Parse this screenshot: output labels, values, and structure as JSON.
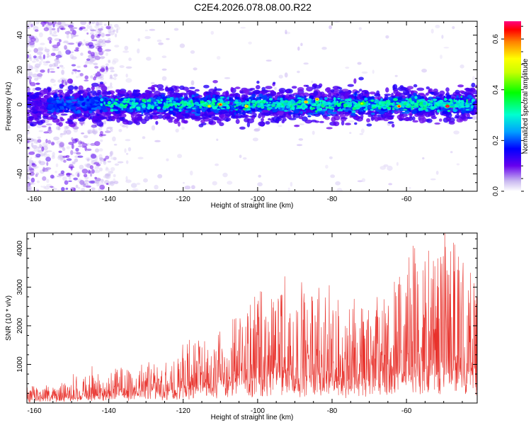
{
  "figure": {
    "title": "C2E4.2026.078.08.00.R22"
  },
  "chart_data": [
    {
      "type": "heatmap",
      "xlabel": "Height of straight line (km)",
      "ylabel": "Frequency (Hz)",
      "xlim": [
        -162,
        -41
      ],
      "ylim": [
        -50,
        48
      ],
      "x_ticks": [
        -160,
        -140,
        -120,
        -100,
        -80,
        -60
      ],
      "y_ticks": [
        -40,
        -20,
        0,
        20,
        40
      ],
      "colorbar": {
        "label": "Normalized spectral amplitude",
        "range": [
          0,
          0.67
        ],
        "ticks": [
          0.0,
          0.2,
          0.4,
          0.6
        ],
        "tick_labels": [
          "0.0",
          "0.2",
          "0.4",
          "0.6"
        ],
        "colormap": "rainbow-on-white"
      },
      "description_band": {
        "center_frequency_hz": 0,
        "band_halfwidth_hz": 7,
        "note": "Dense signal band near 0 Hz across full range; scattered energy at all frequencies for x < -135 km"
      }
    },
    {
      "type": "line",
      "xlabel": "Height of straight line (km)",
      "ylabel": "SNR (10 * v/v)",
      "xlim": [
        -162,
        -41
      ],
      "ylim": [
        0,
        4400
      ],
      "x_ticks": [
        -160,
        -140,
        -120,
        -100,
        -80,
        -60
      ],
      "y_ticks": [
        1000,
        2000,
        3000,
        4000
      ],
      "color": "#e8312b",
      "envelope": {
        "x": [
          -162,
          -155,
          -150,
          -146,
          -142,
          -135,
          -128,
          -122,
          -120,
          -112,
          -108,
          -100,
          -95,
          -92,
          -90,
          -85,
          -80,
          -75,
          -70,
          -65,
          -60,
          -55,
          -50,
          -48,
          -45,
          -42
        ],
        "y_max": [
          450,
          380,
          650,
          1020,
          700,
          900,
          1000,
          1100,
          1500,
          1700,
          2100,
          2500,
          2900,
          3400,
          2700,
          3000,
          2600,
          2500,
          2400,
          3000,
          3500,
          4000,
          4200,
          4400,
          3700,
          3200
        ],
        "y_base": [
          100,
          120,
          150,
          250,
          200,
          250,
          300,
          350,
          450,
          500,
          600,
          700,
          750,
          800,
          750,
          800,
          700,
          650,
          650,
          700,
          800,
          900,
          1000,
          1050,
          950,
          900
        ]
      }
    }
  ]
}
